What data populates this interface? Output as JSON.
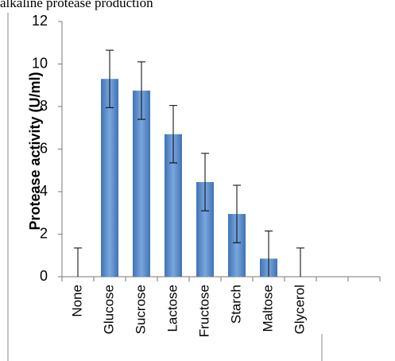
{
  "chart_data": {
    "type": "bar",
    "title": "alkaline protease production",
    "y_label": "Protease activity (U/ml)",
    "categories": [
      "None",
      "Glucose",
      "Sucrose",
      "Lactose",
      "Fructose",
      "Starch",
      "Maltose",
      "Glycerol",
      null,
      null
    ],
    "values": [
      0,
      9.3,
      8.75,
      6.7,
      4.45,
      2.95,
      0.85,
      0,
      null,
      null
    ],
    "errors": [
      1.35,
      1.35,
      1.35,
      1.35,
      1.35,
      1.35,
      1.3,
      1.35,
      null,
      null
    ],
    "color": "#4f81bd",
    "ylim": [
      0,
      12
    ],
    "yticks": [
      0,
      2,
      4,
      6,
      8,
      10,
      12
    ],
    "grid": false
  }
}
